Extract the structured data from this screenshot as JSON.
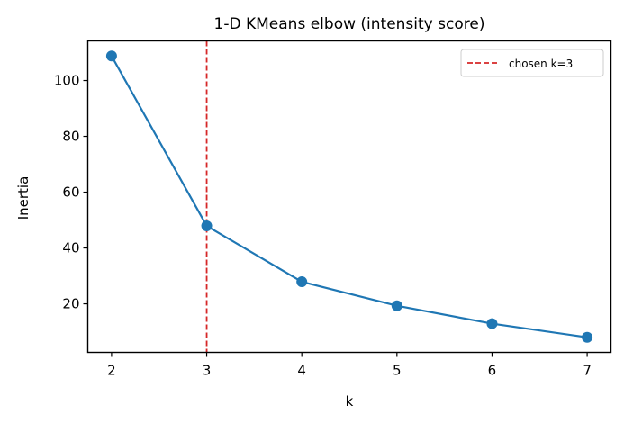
{
  "chart_data": {
    "type": "line",
    "title": "1-D KMeans elbow (intensity score)",
    "xlabel": "k",
    "ylabel": "Inertia",
    "x": [
      2,
      3,
      4,
      5,
      6,
      7
    ],
    "series": [
      {
        "name": "inertia",
        "values": [
          108.8,
          47.9,
          27.9,
          19.3,
          12.9,
          8.0
        ],
        "color": "#1f77b4",
        "marker": "circle"
      }
    ],
    "xticks": [
      2,
      3,
      4,
      5,
      6,
      7
    ],
    "yticks": [
      20,
      40,
      60,
      80,
      100
    ],
    "xlim": [
      1.75,
      7.25
    ],
    "ylim": [
      2.6,
      114.2
    ],
    "annotations": [
      {
        "type": "vline",
        "x": 3,
        "style": "dashed",
        "color": "#d62728",
        "label": "chosen k=3"
      }
    ],
    "legend": {
      "position": "upper right",
      "entries": [
        "chosen k=3"
      ]
    },
    "grid": false
  }
}
